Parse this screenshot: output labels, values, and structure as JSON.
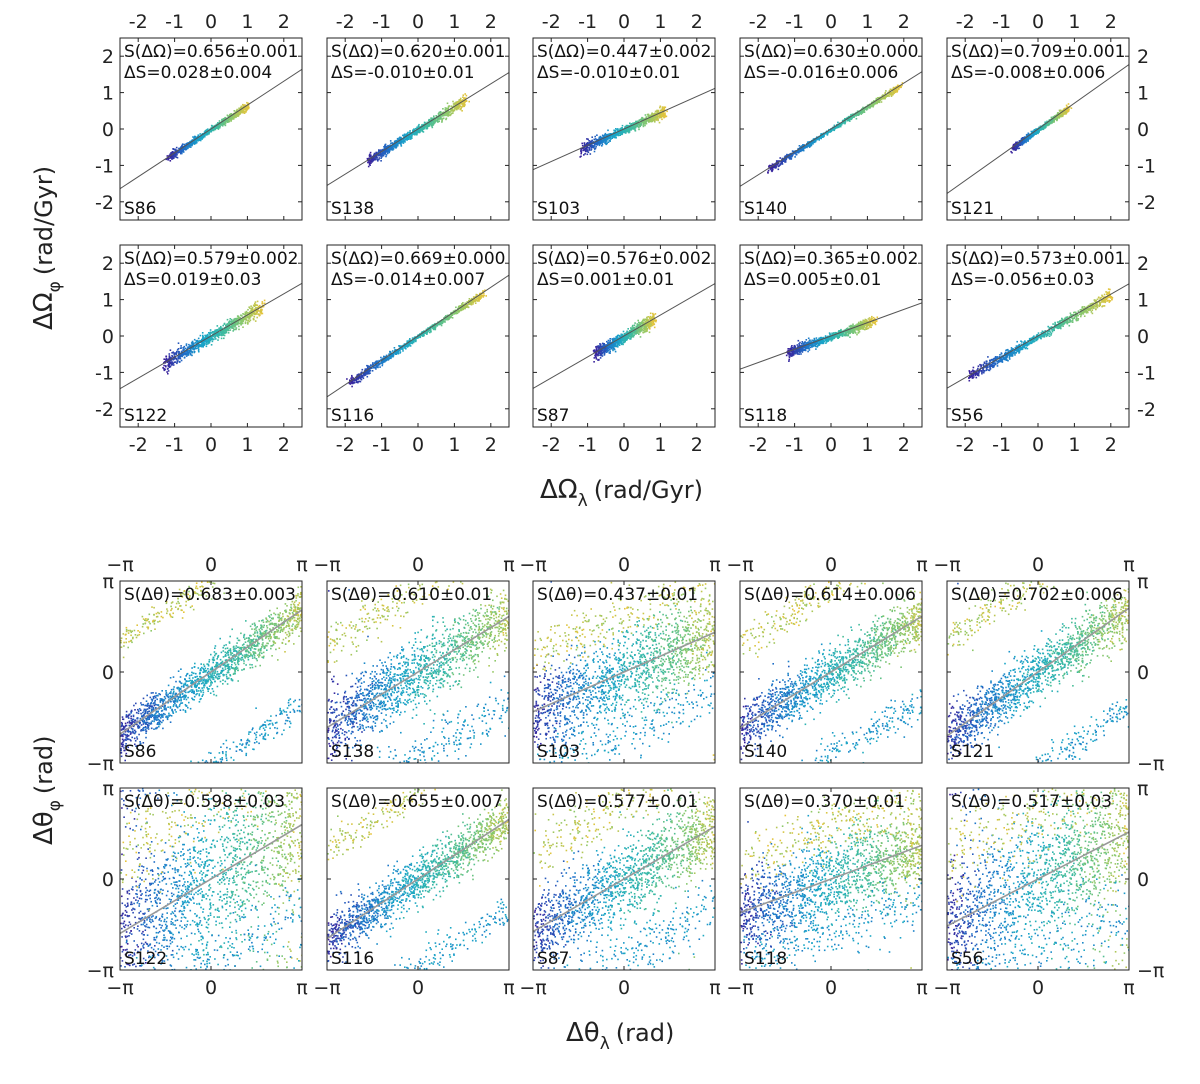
{
  "figure": {
    "top_xlabel_main": "ΔΩ",
    "top_xlabel_sub": "λ",
    "top_xlabel_unit": "(rad/Gyr)",
    "top_ylabel_main": "ΔΩ",
    "top_ylabel_sub": "φ",
    "top_ylabel_unit": "(rad/Gyr)",
    "bottom_xlabel_main": "Δθ",
    "bottom_xlabel_sub": "λ",
    "bottom_xlabel_unit": "(rad)",
    "bottom_ylabel_main": "Δθ",
    "bottom_ylabel_sub": "φ",
    "bottom_ylabel_unit": "(rad)"
  },
  "colors": {
    "low": "#3a1f9a",
    "mid1": "#1e6fc8",
    "mid2": "#19a6c9",
    "mid3": "#3cbba0",
    "mid4": "#8cc86a",
    "high": "#e8c43a",
    "fit_line_top": "#555555",
    "fit_line_bottom": "#999999"
  },
  "chart_data": [
    {
      "type": "scatter",
      "group": "frequency",
      "xlabel": "ΔΩλ (rad/Gyr)",
      "ylabel": "ΔΩφ (rad/Gyr)",
      "xlim": [
        -2.5,
        2.5
      ],
      "ylim": [
        -2.5,
        2.5
      ],
      "xticks": [
        -2,
        -1,
        0,
        1,
        2
      ],
      "yticks": [
        -2,
        -1,
        0,
        1,
        2
      ],
      "xtick_labels": [
        "-2",
        "-1",
        "0",
        "1",
        "2"
      ],
      "ytick_labels": [
        "-2",
        "-1",
        "0",
        "1",
        "2"
      ],
      "panels": [
        {
          "name": "S86",
          "line1": "S(ΔΩ)=0.656±0.001",
          "line2": "ΔS=0.028±0.004",
          "slope": 0.656,
          "xmin": -1.2,
          "xmax": 1.0,
          "spread": 0.06
        },
        {
          "name": "S138",
          "line1": "S(ΔΩ)=0.620±0.001",
          "line2": "ΔS=-0.010±0.01",
          "slope": 0.62,
          "xmin": -1.4,
          "xmax": 1.3,
          "spread": 0.08
        },
        {
          "name": "S103",
          "line1": "S(ΔΩ)=0.447±0.002",
          "line2": "ΔS=-0.010±0.01",
          "slope": 0.447,
          "xmin": -1.2,
          "xmax": 1.1,
          "spread": 0.08
        },
        {
          "name": "S140",
          "line1": "S(ΔΩ)=0.630±0.000",
          "line2": "ΔS=-0.016±0.006",
          "slope": 0.63,
          "xmin": -1.7,
          "xmax": 1.9,
          "spread": 0.05
        },
        {
          "name": "S121",
          "line1": "S(ΔΩ)=0.709±0.001",
          "line2": "ΔS=-0.008±0.006",
          "slope": 0.709,
          "xmin": -0.7,
          "xmax": 0.8,
          "spread": 0.05
        },
        {
          "name": "S122",
          "line1": "S(ΔΩ)=0.579±0.002",
          "line2": "ΔS=0.019±0.03",
          "slope": 0.579,
          "xmin": -1.3,
          "xmax": 1.4,
          "spread": 0.12
        },
        {
          "name": "S116",
          "line1": "S(ΔΩ)=0.669±0.000",
          "line2": "ΔS=-0.014±0.007",
          "slope": 0.669,
          "xmin": -1.9,
          "xmax": 1.8,
          "spread": 0.06
        },
        {
          "name": "S87",
          "line1": "S(ΔΩ)=0.576±0.002",
          "line2": "ΔS=0.001±0.01",
          "slope": 0.576,
          "xmin": -0.8,
          "xmax": 0.8,
          "spread": 0.1
        },
        {
          "name": "S118",
          "line1": "S(ΔΩ)=0.365±0.002",
          "line2": "ΔS=0.005±0.01",
          "slope": 0.365,
          "xmin": -1.2,
          "xmax": 1.2,
          "spread": 0.08
        },
        {
          "name": "S56",
          "line1": "S(ΔΩ)=0.573±0.001",
          "line2": "ΔS=-0.056±0.03",
          "slope": 0.573,
          "xmin": -1.9,
          "xmax": 2.0,
          "spread": 0.08
        }
      ]
    },
    {
      "type": "scatter",
      "group": "angle",
      "xlabel": "Δθλ (rad)",
      "ylabel": "Δθφ (rad)",
      "xlim": [
        -3.1416,
        3.1416
      ],
      "ylim": [
        -3.1416,
        3.1416
      ],
      "xticks": [
        -3.1416,
        0,
        3.1416
      ],
      "yticks": [
        -3.1416,
        0,
        3.1416
      ],
      "xtick_labels": [
        "−π",
        "0",
        "π"
      ],
      "ytick_labels": [
        "−π",
        "0",
        "π"
      ],
      "panels": [
        {
          "name": "S86",
          "line1": "S(Δθ)=0.683±0.003",
          "slope": 0.683,
          "spread": 0.35
        },
        {
          "name": "S138",
          "line1": "S(Δθ)=0.610±0.01",
          "slope": 0.61,
          "spread": 0.6
        },
        {
          "name": "S103",
          "line1": "S(Δθ)=0.437±0.01",
          "slope": 0.437,
          "spread": 0.7
        },
        {
          "name": "S140",
          "line1": "S(Δθ)=0.614±0.006",
          "slope": 0.614,
          "spread": 0.45
        },
        {
          "name": "S121",
          "line1": "S(Δθ)=0.702±0.006",
          "slope": 0.702,
          "spread": 0.45
        },
        {
          "name": "S122",
          "line1": "S(Δθ)=0.598±0.03",
          "slope": 0.598,
          "spread": 1.2
        },
        {
          "name": "S116",
          "line1": "S(Δθ)=0.655±0.007",
          "slope": 0.655,
          "spread": 0.4
        },
        {
          "name": "S87",
          "line1": "S(Δθ)=0.577±0.01",
          "slope": 0.577,
          "spread": 0.7
        },
        {
          "name": "S118",
          "line1": "S(Δθ)=0.370±0.01",
          "slope": 0.37,
          "spread": 0.7
        },
        {
          "name": "S56",
          "line1": "S(Δθ)=0.517±0.03",
          "slope": 0.517,
          "spread": 1.1
        }
      ]
    }
  ]
}
